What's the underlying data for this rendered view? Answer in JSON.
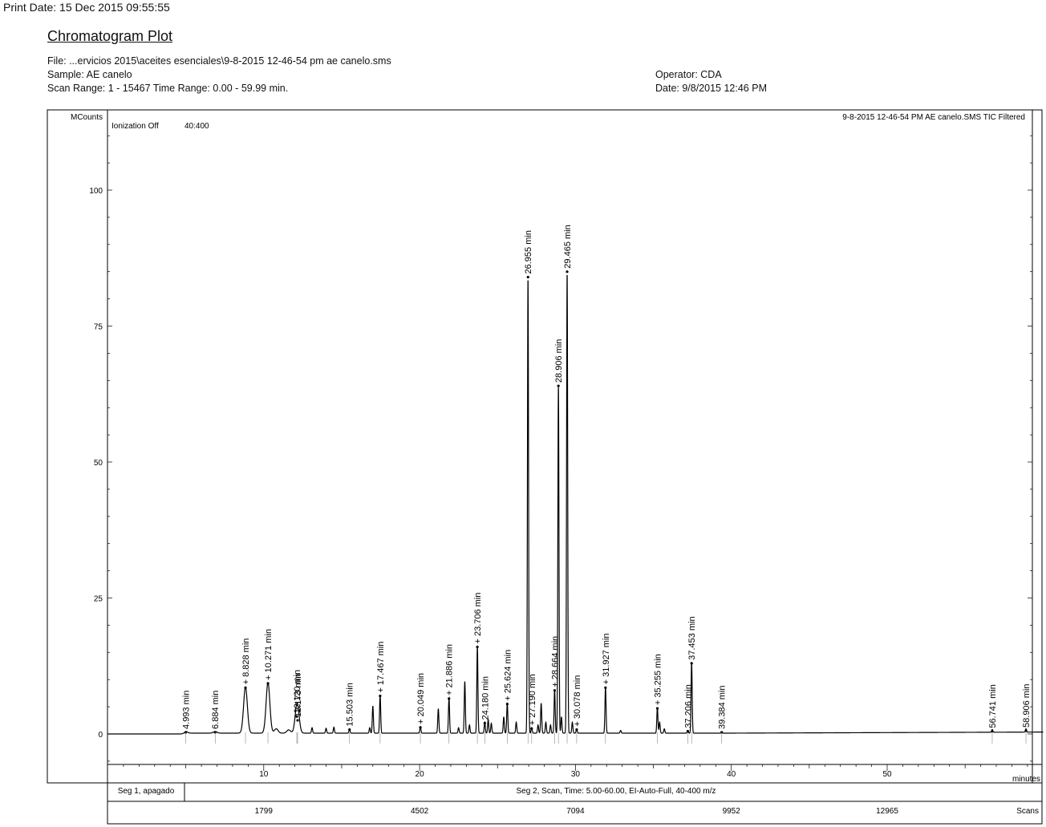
{
  "header": {
    "print_date": "Print Date:  15 Dec 2015 09:55:55",
    "title": "Chromatogram Plot",
    "file": "File: ...ervicios 2015\\aceites esenciales\\9-8-2015 12-46-54 pm ae canelo.sms",
    "sample": "Sample: AE canelo",
    "scan_range": "Scan Range: 1 - 15467 Time Range: 0.00 - 59.99 min.",
    "operator": "Operator: CDA",
    "date": "Date: 9/8/2015 12:46 PM"
  },
  "plot_labels": {
    "y_unit": "MCounts",
    "ionization": "Ionization Off",
    "mass_range": "40:400",
    "trace_name": "9-8-2015 12-46-54 PM AE canelo.SMS TIC Filtered",
    "x_unit": "minutes",
    "scans_unit": "Scans"
  },
  "segments": [
    {
      "label": "Seg 1, apagado"
    },
    {
      "label": "Seg 2, Scan, Time:  5.00-60.00, EI-Auto-Full, 40-400 m/z"
    }
  ],
  "chart_data": {
    "type": "line",
    "xlim": [
      0,
      60
    ],
    "ylim": [
      -5,
      110
    ],
    "x_ticks": [
      10,
      20,
      30,
      40,
      50
    ],
    "y_ticks": [
      0,
      25,
      50,
      75,
      100
    ],
    "scan_ticks": [
      {
        "x": 10,
        "label": "1799"
      },
      {
        "x": 20,
        "label": "4502"
      },
      {
        "x": 30,
        "label": "7094"
      },
      {
        "x": 40,
        "label": "9952"
      },
      {
        "x": 50,
        "label": "12965"
      }
    ],
    "labeled_peaks": [
      {
        "rt": 4.993,
        "height": 0.3,
        "label": "4.993 min"
      },
      {
        "rt": 6.884,
        "height": 0.3,
        "label": "6.884 min"
      },
      {
        "rt": 8.828,
        "height": 8.5,
        "label": "+ 8.828 min"
      },
      {
        "rt": 10.271,
        "height": 9.3,
        "label": "+ 10.271 min"
      },
      {
        "rt": 12.12,
        "height": 3.2,
        "label": "12.120 min"
      },
      {
        "rt": 12.173,
        "height": 2.5,
        "label": "12.173 min"
      },
      {
        "rt": 15.503,
        "height": 0.8,
        "label": "15.503 min"
      },
      {
        "rt": 17.467,
        "height": 7.0,
        "label": "+ 17.467 min"
      },
      {
        "rt": 20.049,
        "height": 1.2,
        "label": "+ 20.049 min"
      },
      {
        "rt": 21.886,
        "height": 6.5,
        "label": "+ 21.886 min"
      },
      {
        "rt": 23.706,
        "height": 16.0,
        "label": "+ 23.706 min"
      },
      {
        "rt": 24.18,
        "height": 2.0,
        "label": "24.180 min"
      },
      {
        "rt": 25.624,
        "height": 5.5,
        "label": "+ 25.624 min"
      },
      {
        "rt": 26.955,
        "height": 84.0,
        "label": "26.955 min"
      },
      {
        "rt": 27.19,
        "height": 1.0,
        "label": "+ 27.190 min"
      },
      {
        "rt": 28.664,
        "height": 8.0,
        "label": "+ 28.664 min"
      },
      {
        "rt": 28.906,
        "height": 64.0,
        "label": "28.906 min"
      },
      {
        "rt": 29.465,
        "height": 85.0,
        "label": "29.465 min"
      },
      {
        "rt": 30.078,
        "height": 0.8,
        "label": "+ 30.078 min"
      },
      {
        "rt": 31.927,
        "height": 8.5,
        "label": "+ 31.927 min"
      },
      {
        "rt": 35.255,
        "height": 4.7,
        "label": "+ 35.255 min"
      },
      {
        "rt": 37.206,
        "height": 0.5,
        "label": "37.206 min"
      },
      {
        "rt": 37.453,
        "height": 13.0,
        "label": "37.453 min"
      },
      {
        "rt": 39.384,
        "height": 0.3,
        "label": "39.384 min"
      },
      {
        "rt": 56.741,
        "height": 0.5,
        "label": "56.741 min"
      },
      {
        "rt": 58.906,
        "height": 0.6,
        "label": "58.906 min"
      }
    ],
    "minor_peaks": [
      {
        "rt": 10.8,
        "height": 0.8
      },
      {
        "rt": 11.6,
        "height": 0.6
      },
      {
        "rt": 13.1,
        "height": 1.0
      },
      {
        "rt": 14.0,
        "height": 0.9
      },
      {
        "rt": 14.5,
        "height": 1.1
      },
      {
        "rt": 16.8,
        "height": 1.0
      },
      {
        "rt": 17.0,
        "height": 5.0
      },
      {
        "rt": 21.2,
        "height": 4.5
      },
      {
        "rt": 22.5,
        "height": 1.0
      },
      {
        "rt": 22.9,
        "height": 9.5
      },
      {
        "rt": 23.2,
        "height": 1.5
      },
      {
        "rt": 24.4,
        "height": 2.5
      },
      {
        "rt": 24.6,
        "height": 1.8
      },
      {
        "rt": 25.4,
        "height": 3.0
      },
      {
        "rt": 26.2,
        "height": 2.0
      },
      {
        "rt": 27.6,
        "height": 1.5
      },
      {
        "rt": 27.8,
        "height": 5.5
      },
      {
        "rt": 28.1,
        "height": 2.0
      },
      {
        "rt": 28.4,
        "height": 1.5
      },
      {
        "rt": 29.1,
        "height": 3.0
      },
      {
        "rt": 29.8,
        "height": 2.0
      },
      {
        "rt": 32.9,
        "height": 0.5
      },
      {
        "rt": 35.4,
        "height": 2.0
      },
      {
        "rt": 35.7,
        "height": 0.8
      }
    ]
  }
}
